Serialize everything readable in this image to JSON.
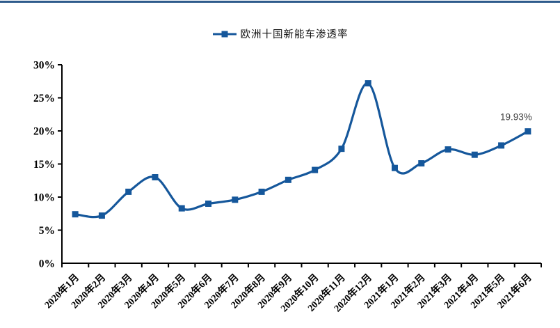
{
  "page": {
    "background": "#ffffff",
    "top_border_color": "#2e5b8c"
  },
  "chart_data": {
    "type": "line",
    "title": "",
    "legend": [
      "欧洲十国新能车渗透率"
    ],
    "legend_position": "top-center",
    "line_color": "#15579b",
    "marker": "square",
    "smooth": true,
    "grid": false,
    "axis_color": "#000000",
    "categories": [
      "2020年1月",
      "2020年2月",
      "2020年3月",
      "2020年4月",
      "2020年5月",
      "2020年6月",
      "2020年7月",
      "2020年8月",
      "2020年9月",
      "2020年10月",
      "2020年11月",
      "2020年12月",
      "2021年1月",
      "2021年2月",
      "2021年3月",
      "2021年4月",
      "2021年5月",
      "2021年6月"
    ],
    "values": [
      7.4,
      7.2,
      10.8,
      13.0,
      8.3,
      9.0,
      9.6,
      10.8,
      12.6,
      14.1,
      17.3,
      27.2,
      14.4,
      15.1,
      17.2,
      16.4,
      17.8,
      19.93
    ],
    "ylim": [
      0,
      30
    ],
    "ytick_step": 5,
    "yticks": [
      "0%",
      "5%",
      "10%",
      "15%",
      "20%",
      "25%",
      "30%"
    ],
    "annotation": {
      "text": "19.93%",
      "point_index": 17,
      "color": "#3f3f3f"
    }
  }
}
